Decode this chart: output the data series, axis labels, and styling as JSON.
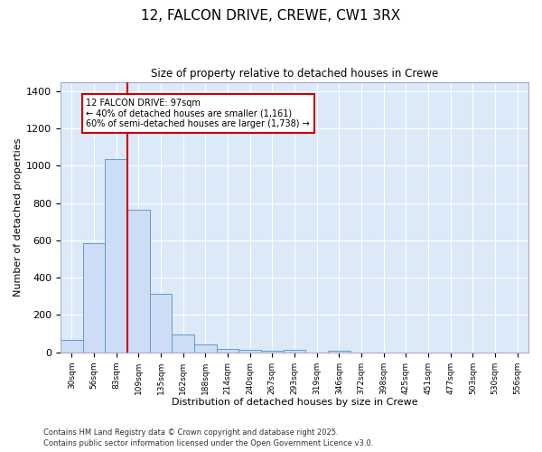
{
  "title1": "12, FALCON DRIVE, CREWE, CW1 3RX",
  "title2": "Size of property relative to detached houses in Crewe",
  "xlabel": "Distribution of detached houses by size in Crewe",
  "ylabel": "Number of detached properties",
  "bar_labels": [
    "30sqm",
    "56sqm",
    "83sqm",
    "109sqm",
    "135sqm",
    "162sqm",
    "188sqm",
    "214sqm",
    "240sqm",
    "267sqm",
    "293sqm",
    "319sqm",
    "346sqm",
    "372sqm",
    "398sqm",
    "425sqm",
    "451sqm",
    "477sqm",
    "503sqm",
    "530sqm",
    "556sqm"
  ],
  "bar_values": [
    65,
    585,
    1035,
    765,
    315,
    95,
    42,
    20,
    15,
    8,
    13,
    0,
    10,
    0,
    0,
    0,
    0,
    0,
    0,
    0,
    0
  ],
  "bar_color": "#ccddf5",
  "bar_edge_color": "#6699cc",
  "red_line_x": 2.5,
  "ylim": [
    0,
    1450
  ],
  "yticks": [
    0,
    200,
    400,
    600,
    800,
    1000,
    1200,
    1400
  ],
  "annotation_title": "12 FALCON DRIVE: 97sqm",
  "annotation_line1": "← 40% of detached houses are smaller (1,161)",
  "annotation_line2": "60% of semi-detached houses are larger (1,738) →",
  "annotation_box_facecolor": "#ffffff",
  "annotation_box_edgecolor": "#cc0000",
  "fig_facecolor": "#ffffff",
  "ax_facecolor": "#dce9f9",
  "grid_color": "#ffffff",
  "footer1": "Contains HM Land Registry data © Crown copyright and database right 2025.",
  "footer2": "Contains public sector information licensed under the Open Government Licence v3.0."
}
